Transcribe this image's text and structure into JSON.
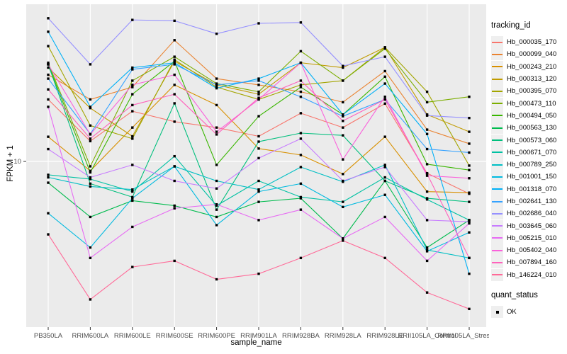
{
  "figure": {
    "background": "#ffffff",
    "panel_background": "#ebebeb",
    "gridline_color": "#ffffff",
    "axis_text_color": "#4d4d4d",
    "tick_color": "#333333",
    "point_color": "#000000",
    "legend_key_background": "#efefef"
  },
  "chart_data": {
    "type": "line",
    "title": "",
    "xlabel": "sample_name",
    "ylabel": "FPKM + 1",
    "y_scale": "log10",
    "ylim": [
      1,
      100
    ],
    "y_ticks": [
      10
    ],
    "y_tick_labels": [
      "10"
    ],
    "grid": true,
    "marker": "square",
    "categories": [
      "PB350LA",
      "RRIM600LA",
      "RRIM600LE",
      "RRIM600SE",
      "RRIM600PE",
      "RRIM901LA",
      "RRIM928BA",
      "RRIM928LA",
      "RRIM928LE",
      "RRII105LA_Control",
      "RRII105LA_Stressed"
    ],
    "legend": {
      "title": "tracking_id",
      "position": "right"
    },
    "legend2": {
      "title": "quant_status",
      "items": [
        {
          "label": "OK",
          "shape": "square",
          "color": "#000000"
        }
      ]
    },
    "series": [
      {
        "name": "Hb_000035_170",
        "color": "#F8766D",
        "values": [
          25,
          13.5,
          21,
          18,
          16.5,
          14.5,
          20.4,
          16.5,
          23.5,
          8.4,
          6.2
        ]
      },
      {
        "name": "Hb_000099_040",
        "color": "#EA8331",
        "values": [
          36,
          25,
          30,
          60,
          34,
          31,
          28,
          24,
          38,
          16,
          13
        ]
      },
      {
        "name": "Hb_000243_210",
        "color": "#D89000",
        "values": [
          14.4,
          8.7,
          16.5,
          31,
          23,
          12.1,
          11,
          8.3,
          14.4,
          6.4,
          6.3
        ]
      },
      {
        "name": "Hb_000313_120",
        "color": "#C09B00",
        "values": [
          40,
          22,
          14.5,
          44,
          31,
          27,
          43,
          40,
          54,
          20,
          15.5
        ]
      },
      {
        "name": "Hb_000395_070",
        "color": "#A3A500",
        "values": [
          55,
          17,
          14,
          45,
          30,
          25,
          31,
          33,
          54,
          28,
          9.4
        ]
      },
      {
        "name": "Hb_000473_110",
        "color": "#7CAE00",
        "values": [
          43,
          9.3,
          33,
          47,
          31.6,
          28,
          51,
          33,
          53,
          24,
          26
        ]
      },
      {
        "name": "Hb_000494_050",
        "color": "#39B600",
        "values": [
          42,
          8.5,
          27,
          44,
          9.5,
          19.5,
          30,
          20,
          35,
          9.6,
          8.8
        ]
      },
      {
        "name": "Hb_000563_130",
        "color": "#00BB4E",
        "values": [
          7.3,
          4.4,
          5.6,
          5.2,
          4.4,
          5.5,
          5.8,
          3.2,
          7.5,
          2.8,
          4.2
        ]
      },
      {
        "name": "Hb_000573_060",
        "color": "#00BF7D",
        "values": [
          42,
          7.2,
          5.9,
          23.6,
          4.9,
          13.4,
          15.2,
          14.7,
          7.5,
          5.8,
          5.5
        ]
      },
      {
        "name": "Hb_000671_070",
        "color": "#00C1A3",
        "values": [
          8.2,
          7.7,
          6.4,
          10.8,
          5.2,
          7.5,
          5.9,
          5.5,
          7.9,
          5.7,
          4.2
        ]
      },
      {
        "name": "Hb_000789_250",
        "color": "#00BFC4",
        "values": [
          7.9,
          6.9,
          6.6,
          9.3,
          7.5,
          6.6,
          9.2,
          7.4,
          9.5,
          2.7,
          2.4
        ]
      },
      {
        "name": "Hb_001001_150",
        "color": "#00BAE0",
        "values": [
          4.65,
          2.8,
          5.8,
          9.3,
          3.9,
          6.4,
          7.2,
          5.1,
          6.1,
          2.65,
          3.5
        ]
      },
      {
        "name": "Hb_001318_070",
        "color": "#00B0F6",
        "values": [
          68,
          22.4,
          40,
          43,
          29.5,
          34,
          43,
          20,
          31.6,
          15,
          1.9
        ]
      },
      {
        "name": "Hb_002641_130",
        "color": "#35A2FF",
        "values": [
          34,
          15,
          39,
          42,
          31,
          33,
          26,
          19.5,
          25,
          12,
          11.4
        ]
      },
      {
        "name": "Hb_002686_040",
        "color": "#9590FF",
        "values": [
          83,
          42,
          81,
          80,
          66,
          77,
          78,
          41,
          47,
          19.7,
          19
        ]
      },
      {
        "name": "Hb_003645_060",
        "color": "#C77CFF",
        "values": [
          12,
          7.9,
          9.5,
          7.5,
          6.7,
          10.5,
          14,
          7.5,
          9.2,
          4.2,
          4.1
        ]
      },
      {
        "name": "Hb_005215_010",
        "color": "#E76BF3",
        "values": [
          22.4,
          2.4,
          3.8,
          5,
          5.3,
          4.2,
          4.9,
          3.2,
          4.4,
          2.3,
          4
        ]
      },
      {
        "name": "Hb_005402_040",
        "color": "#FA62DB",
        "values": [
          42,
          14.9,
          31,
          36,
          15.5,
          25,
          43,
          10.3,
          26,
          8.1,
          7.8
        ]
      },
      {
        "name": "Hb_007894_160",
        "color": "#FF62BC",
        "values": [
          29,
          14,
          23,
          27,
          14.9,
          25.6,
          33,
          18.2,
          25,
          8.3,
          2.4
        ]
      },
      {
        "name": "Hb_146224_010",
        "color": "#FF6A98",
        "values": [
          3.4,
          1.3,
          2.1,
          2.3,
          1.75,
          1.9,
          2.4,
          3.1,
          2.4,
          1.44,
          1.13
        ]
      }
    ]
  }
}
